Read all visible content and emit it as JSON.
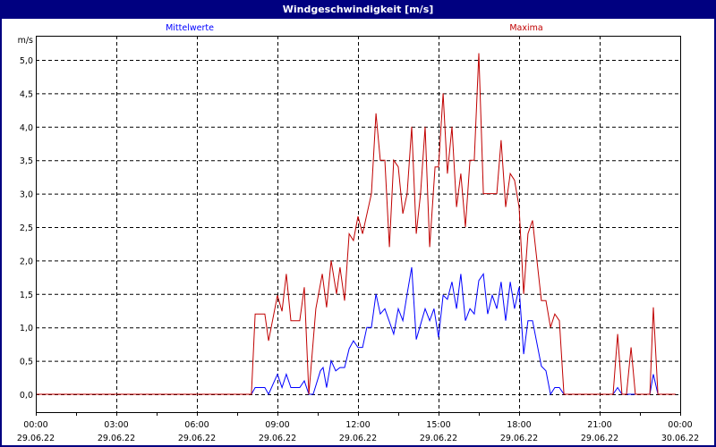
{
  "window": {
    "title": "Windgeschwindigkeit [m/s]"
  },
  "chart_data": {
    "type": "line",
    "title": "Windgeschwindigkeit [m/s]",
    "ylabel": "m/s",
    "xlabel": "",
    "ylim": [
      0,
      5.5
    ],
    "xlim_hours": [
      0,
      24
    ],
    "grid": true,
    "y_ticks": [
      "0,0",
      "0,5",
      "1,0",
      "1,5",
      "2,0",
      "2,5",
      "3,0",
      "3,5",
      "4,0",
      "4,5",
      "5,0"
    ],
    "x_ticks": [
      {
        "time": "00:00",
        "date": "29.06.22"
      },
      {
        "time": "03:00",
        "date": "29.06.22"
      },
      {
        "time": "06:00",
        "date": "29.06.22"
      },
      {
        "time": "09:00",
        "date": "29.06.22"
      },
      {
        "time": "12:00",
        "date": "29.06.22"
      },
      {
        "time": "15:00",
        "date": "29.06.22"
      },
      {
        "time": "18:00",
        "date": "29.06.22"
      },
      {
        "time": "21:00",
        "date": "29.06.22"
      },
      {
        "time": "00:00",
        "date": "30.06.22"
      }
    ],
    "series": [
      {
        "name": "Mittelwerte",
        "color": "#0000ff",
        "legend": "top-left",
        "points": [
          [
            0,
            0
          ],
          [
            8.03,
            0
          ],
          [
            8.17,
            0.1
          ],
          [
            8.53,
            0.1
          ],
          [
            8.67,
            0
          ],
          [
            9.0,
            0.3
          ],
          [
            9.17,
            0.1
          ],
          [
            9.33,
            0.3
          ],
          [
            9.5,
            0.1
          ],
          [
            9.83,
            0.1
          ],
          [
            10.0,
            0.2
          ],
          [
            10.17,
            0
          ],
          [
            10.33,
            0
          ],
          [
            10.6,
            0.35
          ],
          [
            10.7,
            0.4
          ],
          [
            10.83,
            0.1
          ],
          [
            11.0,
            0.5
          ],
          [
            11.17,
            0.35
          ],
          [
            11.33,
            0.4
          ],
          [
            11.5,
            0.4
          ],
          [
            11.67,
            0.68
          ],
          [
            11.83,
            0.8
          ],
          [
            12.0,
            0.7
          ],
          [
            12.17,
            0.7
          ],
          [
            12.33,
            1.0
          ],
          [
            12.5,
            1.0
          ],
          [
            12.67,
            1.5
          ],
          [
            12.83,
            1.2
          ],
          [
            13.0,
            1.28
          ],
          [
            13.33,
            0.9
          ],
          [
            13.5,
            1.28
          ],
          [
            13.67,
            1.1
          ],
          [
            13.83,
            1.5
          ],
          [
            14.0,
            1.9
          ],
          [
            14.17,
            0.82
          ],
          [
            14.5,
            1.28
          ],
          [
            14.67,
            1.1
          ],
          [
            14.83,
            1.28
          ],
          [
            15.0,
            0.85
          ],
          [
            15.17,
            1.48
          ],
          [
            15.33,
            1.42
          ],
          [
            15.5,
            1.68
          ],
          [
            15.67,
            1.28
          ],
          [
            15.83,
            1.8
          ],
          [
            16.0,
            1.1
          ],
          [
            16.17,
            1.28
          ],
          [
            16.33,
            1.2
          ],
          [
            16.5,
            1.7
          ],
          [
            16.67,
            1.8
          ],
          [
            16.83,
            1.2
          ],
          [
            17.0,
            1.48
          ],
          [
            17.17,
            1.28
          ],
          [
            17.33,
            1.68
          ],
          [
            17.5,
            1.1
          ],
          [
            17.67,
            1.68
          ],
          [
            17.83,
            1.28
          ],
          [
            18.0,
            1.6
          ],
          [
            18.17,
            0.6
          ],
          [
            18.33,
            1.1
          ],
          [
            18.5,
            1.1
          ],
          [
            18.83,
            0.42
          ],
          [
            19.0,
            0.35
          ],
          [
            19.17,
            0
          ],
          [
            19.33,
            0.1
          ],
          [
            19.5,
            0.1
          ],
          [
            19.67,
            0
          ],
          [
            21.5,
            0
          ],
          [
            21.67,
            0.1
          ],
          [
            21.83,
            0
          ],
          [
            22.87,
            0
          ],
          [
            23.0,
            0.3
          ],
          [
            23.17,
            0
          ],
          [
            23.83,
            0
          ]
        ]
      },
      {
        "name": "Maxima",
        "color": "#c00000",
        "legend": "top-right",
        "points": [
          [
            0,
            0
          ],
          [
            8.03,
            0
          ],
          [
            8.17,
            1.2
          ],
          [
            8.53,
            1.2
          ],
          [
            8.67,
            0.8
          ],
          [
            9.0,
            1.48
          ],
          [
            9.17,
            1.24
          ],
          [
            9.33,
            1.8
          ],
          [
            9.5,
            1.1
          ],
          [
            9.83,
            1.1
          ],
          [
            10.0,
            1.6
          ],
          [
            10.17,
            0
          ],
          [
            10.43,
            1.28
          ],
          [
            10.67,
            1.8
          ],
          [
            10.83,
            1.3
          ],
          [
            11.0,
            2.0
          ],
          [
            11.2,
            1.5
          ],
          [
            11.33,
            1.9
          ],
          [
            11.5,
            1.4
          ],
          [
            11.67,
            2.4
          ],
          [
            11.83,
            2.3
          ],
          [
            12.0,
            2.66
          ],
          [
            12.17,
            2.4
          ],
          [
            12.5,
            3.0
          ],
          [
            12.67,
            4.2
          ],
          [
            12.83,
            3.5
          ],
          [
            13.0,
            3.5
          ],
          [
            13.17,
            2.2
          ],
          [
            13.33,
            3.5
          ],
          [
            13.5,
            3.4
          ],
          [
            13.67,
            2.7
          ],
          [
            13.83,
            3.0
          ],
          [
            14.0,
            4.0
          ],
          [
            14.17,
            2.4
          ],
          [
            14.33,
            3.0
          ],
          [
            14.5,
            4.0
          ],
          [
            14.67,
            2.2
          ],
          [
            14.87,
            3.4
          ],
          [
            15.0,
            3.4
          ],
          [
            15.17,
            4.5
          ],
          [
            15.33,
            3.3
          ],
          [
            15.5,
            4.0
          ],
          [
            15.67,
            2.8
          ],
          [
            15.83,
            3.3
          ],
          [
            16.0,
            2.5
          ],
          [
            16.17,
            3.5
          ],
          [
            16.33,
            3.5
          ],
          [
            16.5,
            5.1
          ],
          [
            16.67,
            3.0
          ],
          [
            17.17,
            3.0
          ],
          [
            17.33,
            3.8
          ],
          [
            17.5,
            2.8
          ],
          [
            17.67,
            3.3
          ],
          [
            17.83,
            3.2
          ],
          [
            18.0,
            2.8
          ],
          [
            18.17,
            1.5
          ],
          [
            18.33,
            2.4
          ],
          [
            18.5,
            2.6
          ],
          [
            18.83,
            1.4
          ],
          [
            19.0,
            1.4
          ],
          [
            19.17,
            1.0
          ],
          [
            19.33,
            1.2
          ],
          [
            19.5,
            1.1
          ],
          [
            19.67,
            0
          ],
          [
            21.5,
            0
          ],
          [
            21.67,
            0.9
          ],
          [
            21.83,
            0
          ],
          [
            22.0,
            0
          ],
          [
            22.17,
            0.7
          ],
          [
            22.33,
            0
          ],
          [
            22.87,
            0
          ],
          [
            23.0,
            1.3
          ],
          [
            23.17,
            0
          ],
          [
            23.83,
            0
          ]
        ]
      }
    ]
  }
}
